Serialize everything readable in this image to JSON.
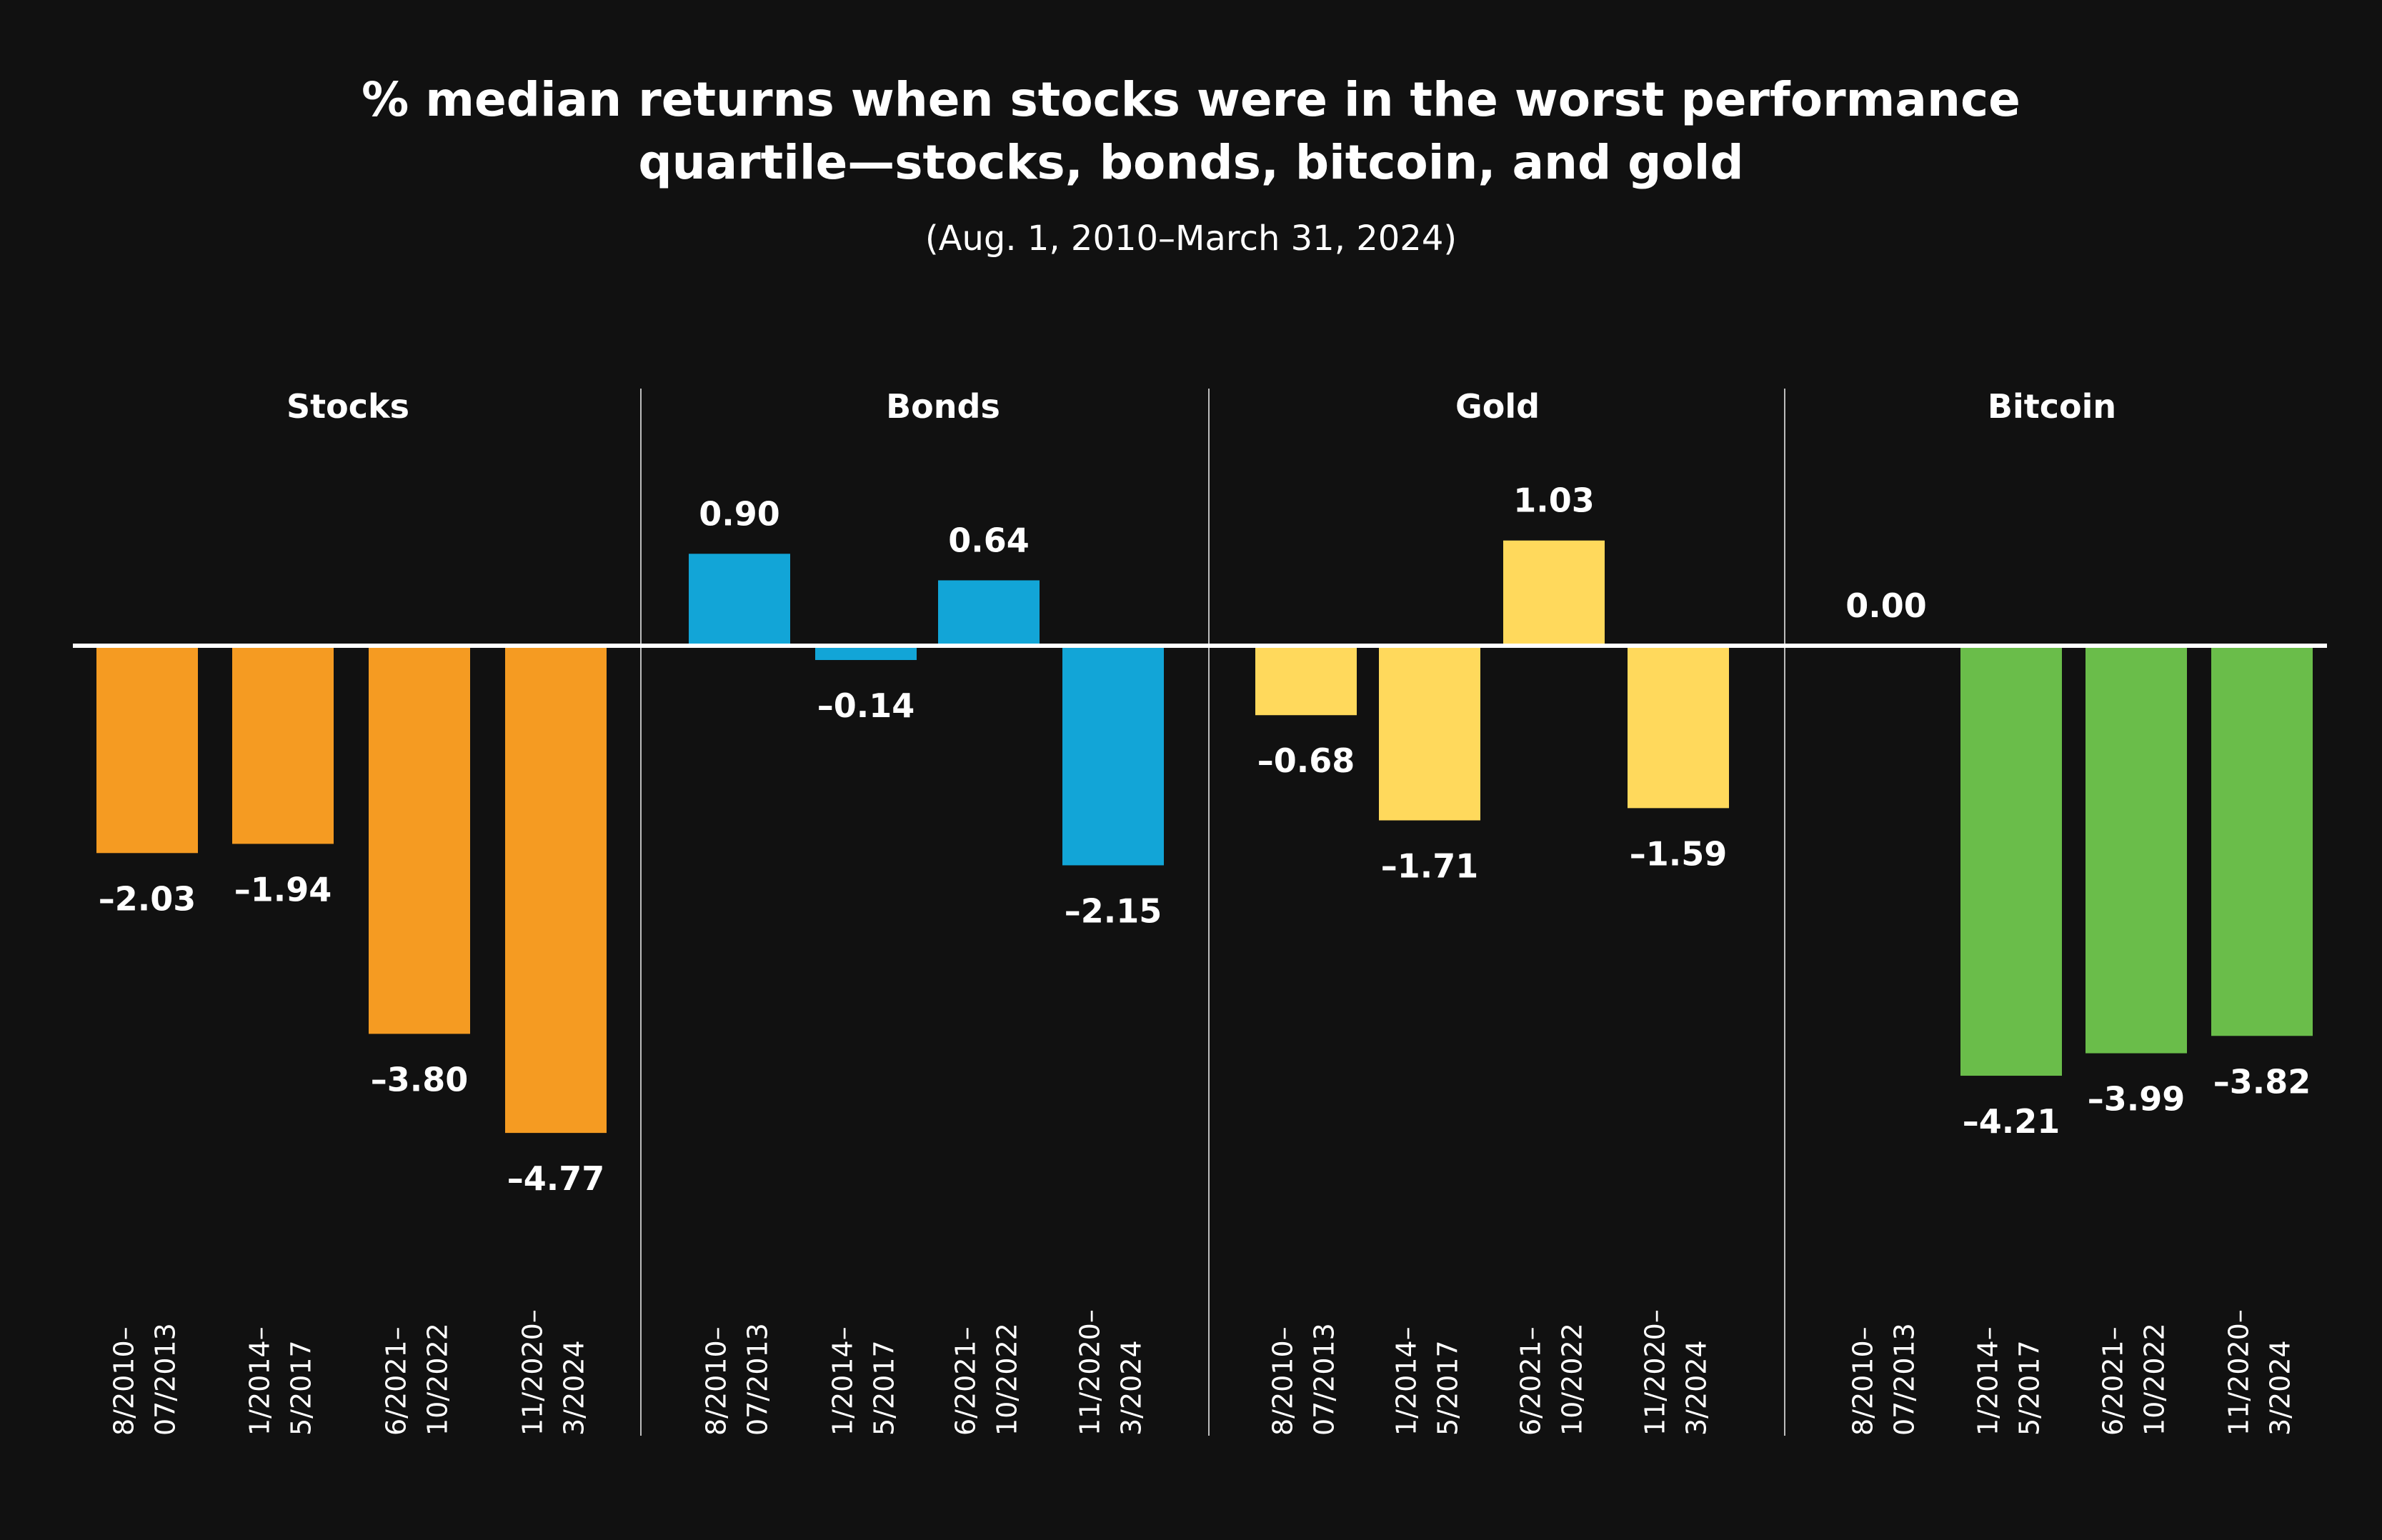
{
  "chart_data": {
    "type": "bar",
    "title": "% median returns when stocks were in the worst performance quartile—stocks, bonds, bitcoin, and gold",
    "title_lines": [
      "% median returns when stocks were in the worst performance",
      "quartile—stocks, bonds, bitcoin, and gold"
    ],
    "subtitle": "(Aug. 1, 2010–March 31, 2024)",
    "xlabel": "",
    "ylabel": "",
    "grid": false,
    "legend": "none",
    "categories": [
      "8/2010–07/2013",
      "1/2014–5/2017",
      "6/2021–10/2022",
      "11/2020–3/2024"
    ],
    "panels": [
      {
        "name": "Stocks",
        "color": "#F59B22",
        "values": [
          -2.03,
          -1.94,
          -3.8,
          -4.77
        ]
      },
      {
        "name": "Bonds",
        "color": "#12A5D7",
        "values": [
          0.9,
          -0.14,
          0.64,
          -2.15
        ]
      },
      {
        "name": "Gold",
        "color": "#FFD95C",
        "values": [
          -0.68,
          -1.71,
          1.03,
          -1.59
        ]
      },
      {
        "name": "Bitcoin",
        "color": "#6ABD4A",
        "values": [
          0.0,
          -4.21,
          -3.99,
          -3.82
        ]
      }
    ],
    "background": "#111111"
  }
}
